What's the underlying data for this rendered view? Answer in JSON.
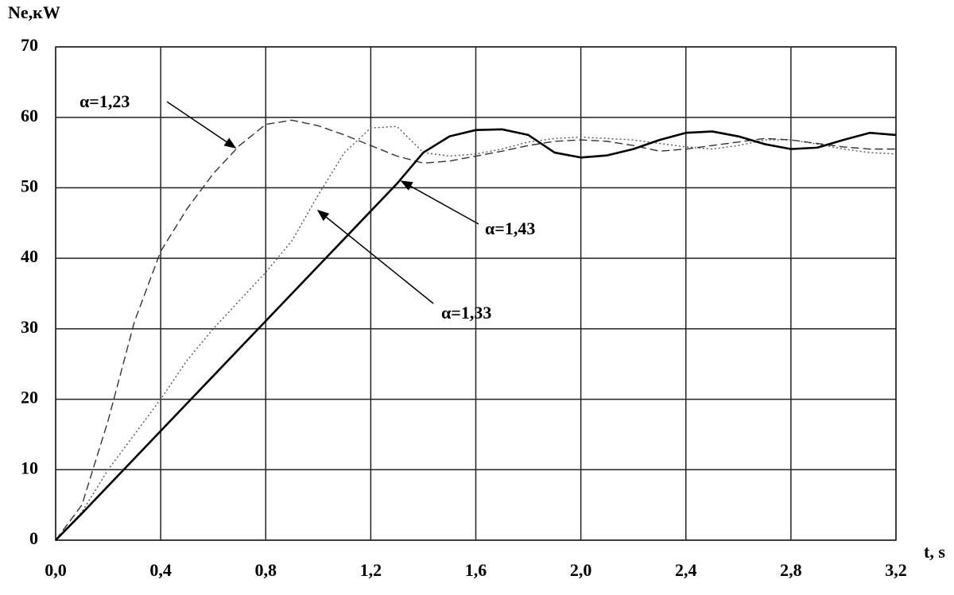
{
  "chart_data": {
    "type": "line",
    "x_label": "t, s",
    "y_label": "Ne,кW",
    "x": [
      0,
      0.1,
      0.2,
      0.3,
      0.4,
      0.5,
      0.6,
      0.7,
      0.8,
      0.9,
      1.0,
      1.1,
      1.2,
      1.3,
      1.4,
      1.5,
      1.6,
      1.7,
      1.8,
      1.9,
      2.0,
      2.1,
      2.2,
      2.3,
      2.4,
      2.5,
      2.6,
      2.7,
      2.8,
      2.9,
      3.0,
      3.1,
      3.2
    ],
    "series": [
      {
        "name": "α=1,23",
        "color": "#333333",
        "dash": "dashed",
        "values": [
          0,
          5,
          17,
          31,
          41,
          47,
          52,
          56,
          59,
          59.6,
          58.8,
          57.5,
          56,
          54.5,
          53.5,
          53.8,
          54.5,
          55.2,
          56,
          56.6,
          56.8,
          56.6,
          56,
          55.2,
          55.5,
          56,
          56.5,
          57,
          56.8,
          56.3,
          55.8,
          55.5,
          55.5
        ]
      },
      {
        "name": "α=1,33",
        "color": "#555555",
        "dash": "dotted",
        "values": [
          0,
          4,
          10,
          15,
          20,
          25.5,
          30,
          34,
          38,
          42.5,
          49,
          55,
          58.5,
          58.7,
          55,
          54.5,
          54.8,
          55.5,
          56.5,
          57,
          57.2,
          57,
          56.8,
          56.3,
          55.8,
          55.5,
          56,
          56.8,
          56.8,
          56.2,
          55.5,
          55,
          54.8
        ]
      },
      {
        "name": "α=1,43",
        "color": "#000000",
        "dash": "solid",
        "values": [
          0,
          3.8,
          7.7,
          11.6,
          15.5,
          19.4,
          23.3,
          27.2,
          31.1,
          35,
          38.9,
          42.8,
          46.7,
          50.6,
          55,
          57.3,
          58.2,
          58.3,
          57.5,
          55,
          54.3,
          54.6,
          55.5,
          56.8,
          57.8,
          58,
          57.3,
          56.2,
          55.5,
          55.7,
          56.8,
          57.8,
          57.5
        ]
      }
    ],
    "xlim": [
      0,
      3.2
    ],
    "xticks": [
      {
        "value": 0,
        "label": "0,0"
      },
      {
        "value": 0.4,
        "label": "0,4"
      },
      {
        "value": 0.8,
        "label": "0,8"
      },
      {
        "value": 1.2,
        "label": "1,2"
      },
      {
        "value": 1.6,
        "label": "1,6"
      },
      {
        "value": 2.0,
        "label": "2,0"
      },
      {
        "value": 2.4,
        "label": "2,4"
      },
      {
        "value": 2.8,
        "label": "2,8"
      },
      {
        "value": 3.2,
        "label": "3,2"
      }
    ],
    "ylim": [
      0,
      70
    ],
    "yticks": [
      0,
      10,
      20,
      30,
      40,
      50,
      60,
      70
    ],
    "grid": true
  }
}
